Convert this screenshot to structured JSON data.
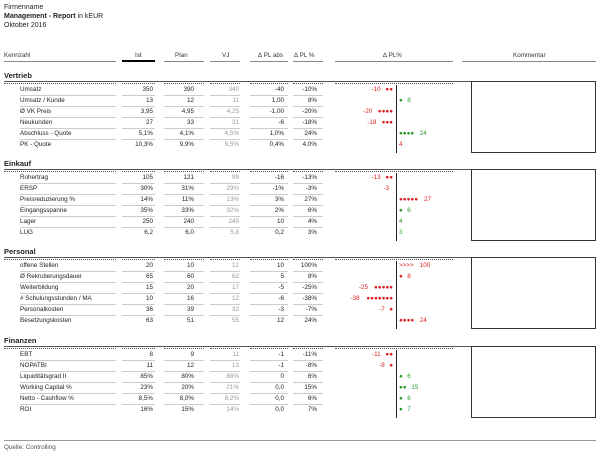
{
  "header": {
    "company": "Firmenname",
    "title": "Management - Report",
    "unit": "in kEUR",
    "period": "Oktober 2016"
  },
  "columns": {
    "kennzahl": "Kennzahl",
    "ist": "Ist",
    "plan": "Plan",
    "vj": "VJ",
    "pl_abs": "∆ PL abs",
    "pl_pct": "∆ PL %",
    "pl_chart": "∆ PL%",
    "kommentar": "Kommentar"
  },
  "sections": [
    {
      "name": "Vertrieb",
      "rows": [
        {
          "label": "Umsatz",
          "ist": "350",
          "plan": "390",
          "vj": "340",
          "abs": "-40",
          "pct": "-10%",
          "val": -10,
          "mark": "●●",
          "txt": "-10"
        },
        {
          "label": "Umsatz / Kunde",
          "ist": "13",
          "plan": "12",
          "vj": "11",
          "abs": "1,00",
          "pct": "8%",
          "val": 8,
          "mark": "●",
          "txt": "8"
        },
        {
          "label": "Ø VK Preis",
          "ist": "3,95",
          "plan": "4,95",
          "vj": "4,25",
          "abs": "-1,00",
          "pct": "-20%",
          "val": -20,
          "mark": "●●●●",
          "txt": "-20"
        },
        {
          "label": "Neukunden",
          "ist": "27",
          "plan": "33",
          "vj": "31",
          "abs": "-6",
          "pct": "-18%",
          "val": -18,
          "mark": "●●●",
          "txt": "-18"
        },
        {
          "label": "Abschluss - Quote",
          "ist": "5,1%",
          "plan": "4,1%",
          "vj": "4,5%",
          "abs": "1,0%",
          "pct": "24%",
          "val": 24,
          "mark": "●●●●",
          "txt": "24"
        },
        {
          "label": "PK - Quote",
          "ist": "10,3%",
          "plan": "9,9%",
          "vj": "9,5%",
          "abs": "0,4%",
          "pct": "4,0%",
          "val": 4,
          "mark": "",
          "txt": "4"
        }
      ]
    },
    {
      "name": "Einkauf",
      "rows": [
        {
          "label": "Rohertrag",
          "ist": "105",
          "plan": "121",
          "vj": "99",
          "abs": "-16",
          "pct": "-13%",
          "val": -13,
          "mark": "●●",
          "txt": "-13"
        },
        {
          "label": "ERSP",
          "ist": "30%",
          "plan": "31%",
          "vj": "29%",
          "abs": "-1%",
          "pct": "-3%",
          "val": -3,
          "mark": "",
          "txt": "-3"
        },
        {
          "label": "Preisreduzierung %",
          "ist": "14%",
          "plan": "11%",
          "vj": "13%",
          "abs": "3%",
          "pct": "27%",
          "val": 27,
          "mark": "●●●●●",
          "txt": "27"
        },
        {
          "label": "Eingangsspanne",
          "ist": "35%",
          "plan": "33%",
          "vj": "32%",
          "abs": "2%",
          "pct": "6%",
          "val": 6,
          "mark": "●",
          "txt": "6"
        },
        {
          "label": "Lager",
          "ist": "250",
          "plan": "240",
          "vj": "245",
          "abs": "10",
          "pct": "4%",
          "val": 4,
          "mark": "",
          "txt": "4"
        },
        {
          "label": "LUG",
          "ist": "6,2",
          "plan": "6,0",
          "vj": "5,8",
          "abs": "0,2",
          "pct": "3%",
          "val": 3,
          "mark": "",
          "txt": "3"
        }
      ]
    },
    {
      "name": "Personal",
      "rows": [
        {
          "label": "offene Stellen",
          "ist": "20",
          "plan": "10",
          "vj": "12",
          "abs": "10",
          "pct": "100%",
          "val": 100,
          "mark": ">>>>",
          "txt": "100"
        },
        {
          "label": "Ø Rekrutierungsdauer",
          "ist": "65",
          "plan": "60",
          "vj": "62",
          "abs": "5",
          "pct": "8%",
          "val": 8,
          "mark": "●",
          "txt": "8"
        },
        {
          "label": "Weiterbildung",
          "ist": "15",
          "plan": "20",
          "vj": "17",
          "abs": "-5",
          "pct": "-25%",
          "val": -25,
          "mark": "●●●●●",
          "txt": "-25"
        },
        {
          "label": "# Schulungsstunden / MA",
          "ist": "10",
          "plan": "16",
          "vj": "12",
          "abs": "-6",
          "pct": "-38%",
          "val": -38,
          "mark": "●●●●●●●",
          "txt": "-38"
        },
        {
          "label": "Personalkosten",
          "ist": "36",
          "plan": "39",
          "vj": "32",
          "abs": "-3",
          "pct": "-7%",
          "val": -7,
          "mark": "●",
          "txt": "-7"
        },
        {
          "label": "Besetzungskosten",
          "ist": "63",
          "plan": "51",
          "vj": "55",
          "abs": "12",
          "pct": "24%",
          "val": 24,
          "mark": "●●●●",
          "txt": "24"
        }
      ]
    },
    {
      "name": "Finanzen",
      "rows": [
        {
          "label": "EBT",
          "ist": "8",
          "plan": "9",
          "vj": "11",
          "abs": "-1",
          "pct": "-11%",
          "val": -11,
          "mark": "●●",
          "txt": "-11"
        },
        {
          "label": "NOPATBI",
          "ist": "11",
          "plan": "12",
          "vj": "13",
          "abs": "-1",
          "pct": "-8%",
          "val": -8,
          "mark": "●",
          "txt": "-8"
        },
        {
          "label": "Liquiditätsgrad II",
          "ist": "85%",
          "plan": "80%",
          "vj": "88%",
          "abs": "0",
          "pct": "6%",
          "val": 6,
          "mark": "●",
          "txt": "6"
        },
        {
          "label": "Working Capital %",
          "ist": "23%",
          "plan": "20%",
          "vj": "21%",
          "abs": "0,0",
          "pct": "15%",
          "val": 15,
          "mark": "●●",
          "txt": "15"
        },
        {
          "label": "Netto - Cashflow %",
          "ist": "8,5%",
          "plan": "8,0%",
          "vj": "8,2%",
          "abs": "0,0",
          "pct": "6%",
          "val": 6,
          "mark": "●",
          "txt": "6"
        },
        {
          "label": "ROI",
          "ist": "16%",
          "plan": "15%",
          "vj": "14%",
          "abs": "0,0",
          "pct": "7%",
          "val": 7,
          "mark": "●",
          "txt": "7"
        }
      ]
    }
  ],
  "footer": {
    "source": "Quelle: Controlling"
  },
  "colors": {
    "negative": "#e02020",
    "positive": "#2a9a2a",
    "text": "#222222",
    "muted": "#999999"
  }
}
